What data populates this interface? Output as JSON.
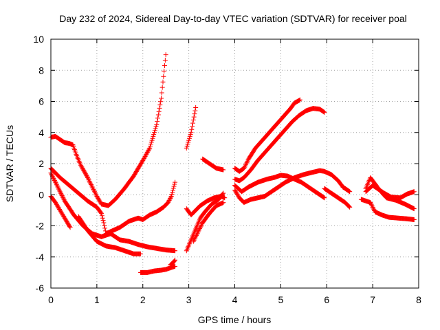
{
  "chart_data": {
    "type": "scatter",
    "title": "Day 232 of 2024, Sidereal Day-to-day VTEC variation (SDTVAR) for receiver poal",
    "xlabel": "GPS time / hours",
    "ylabel": "SDTVAR / TECUs",
    "xlim": [
      0,
      8
    ],
    "ylim": [
      -6,
      10
    ],
    "xticks": [
      0,
      1,
      2,
      3,
      4,
      5,
      6,
      7,
      8
    ],
    "yticks": [
      -6,
      -4,
      -2,
      0,
      2,
      4,
      6,
      8,
      10
    ],
    "grid": true,
    "marker": "+",
    "marker_color": "#ff0000",
    "series": [
      {
        "name": "s1",
        "points": [
          [
            0.0,
            3.7
          ],
          [
            0.1,
            3.75
          ],
          [
            0.2,
            3.55
          ],
          [
            0.3,
            3.35
          ],
          [
            0.4,
            3.3
          ],
          [
            0.48,
            3.2
          ],
          [
            0.55,
            2.6
          ],
          [
            0.65,
            1.9
          ],
          [
            0.8,
            1.1
          ],
          [
            0.9,
            0.5
          ],
          [
            1.0,
            -0.1
          ],
          [
            1.1,
            -0.6
          ],
          [
            1.25,
            -0.7
          ],
          [
            1.4,
            -0.3
          ],
          [
            1.6,
            0.4
          ],
          [
            1.8,
            1.2
          ],
          [
            2.0,
            2.2
          ],
          [
            2.15,
            3.0
          ],
          [
            2.3,
            4.5
          ],
          [
            2.4,
            6.2
          ],
          [
            2.5,
            9.0
          ]
        ]
      },
      {
        "name": "s2",
        "points": [
          [
            0.0,
            1.7
          ],
          [
            0.2,
            1.1
          ],
          [
            0.4,
            0.6
          ],
          [
            0.6,
            0.1
          ],
          [
            0.8,
            -0.4
          ],
          [
            1.0,
            -0.8
          ],
          [
            1.1,
            -1.2
          ],
          [
            1.15,
            -1.8
          ],
          [
            1.2,
            -2.5
          ],
          [
            1.35,
            -2.3
          ],
          [
            1.5,
            -2.1
          ],
          [
            1.7,
            -1.7
          ],
          [
            1.9,
            -1.5
          ],
          [
            2.0,
            -1.6
          ],
          [
            2.15,
            -1.3
          ],
          [
            2.3,
            -1.1
          ],
          [
            2.45,
            -0.8
          ],
          [
            2.55,
            -0.5
          ],
          [
            2.62,
            -0.1
          ],
          [
            2.7,
            0.8
          ]
        ]
      },
      {
        "name": "s3",
        "points": [
          [
            0.0,
            1.4
          ],
          [
            0.15,
            0.5
          ],
          [
            0.3,
            -0.4
          ],
          [
            0.5,
            -1.3
          ],
          [
            0.7,
            -2.0
          ],
          [
            0.9,
            -2.5
          ],
          [
            1.1,
            -2.7
          ],
          [
            1.3,
            -2.5
          ],
          [
            1.5,
            -2.9
          ],
          [
            1.7,
            -3.0
          ],
          [
            1.9,
            -3.2
          ],
          [
            2.1,
            -3.35
          ],
          [
            2.3,
            -3.45
          ],
          [
            2.5,
            -3.55
          ],
          [
            2.7,
            -3.6
          ]
        ]
      },
      {
        "name": "s4",
        "points": [
          [
            0.0,
            -0.1
          ],
          [
            0.1,
            -0.5
          ],
          [
            0.2,
            -1.0
          ],
          [
            0.3,
            -1.5
          ],
          [
            0.42,
            -2.1
          ]
        ]
      },
      {
        "name": "s5",
        "points": [
          [
            0.6,
            -1.4
          ],
          [
            0.8,
            -2.3
          ],
          [
            1.0,
            -3.0
          ],
          [
            1.2,
            -3.3
          ],
          [
            1.4,
            -3.4
          ],
          [
            1.6,
            -3.6
          ],
          [
            1.8,
            -3.8
          ],
          [
            1.95,
            -3.8
          ]
        ]
      },
      {
        "name": "s6",
        "points": [
          [
            1.95,
            -5.0
          ],
          [
            2.1,
            -5.0
          ],
          [
            2.25,
            -4.9
          ],
          [
            2.4,
            -4.85
          ],
          [
            2.5,
            -4.8
          ],
          [
            2.6,
            -4.7
          ],
          [
            2.7,
            -4.6
          ]
        ]
      },
      {
        "name": "s7",
        "points": [
          [
            2.6,
            -4.5
          ],
          [
            2.65,
            -4.4
          ],
          [
            2.7,
            -4.2
          ]
        ]
      },
      {
        "name": "s8",
        "points": [
          [
            2.95,
            3.0
          ],
          [
            3.0,
            3.5
          ],
          [
            3.05,
            4.0
          ],
          [
            3.1,
            4.8
          ],
          [
            3.15,
            5.6
          ]
        ]
      },
      {
        "name": "s9",
        "points": [
          [
            2.95,
            -3.6
          ],
          [
            3.05,
            -2.9
          ],
          [
            3.15,
            -2.2
          ],
          [
            3.25,
            -1.5
          ],
          [
            3.35,
            -1.1
          ],
          [
            3.5,
            -0.6
          ],
          [
            3.65,
            -0.3
          ],
          [
            3.75,
            0.1
          ]
        ]
      },
      {
        "name": "s10",
        "points": [
          [
            2.95,
            -0.9
          ],
          [
            3.05,
            -1.3
          ],
          [
            3.15,
            -1.0
          ],
          [
            3.25,
            -0.7
          ],
          [
            3.4,
            -0.4
          ],
          [
            3.55,
            -0.2
          ],
          [
            3.7,
            -0.1
          ],
          [
            3.78,
            -0.2
          ]
        ]
      },
      {
        "name": "s11",
        "points": [
          [
            3.1,
            -3.0
          ],
          [
            3.2,
            -2.4
          ],
          [
            3.3,
            -1.8
          ],
          [
            3.45,
            -1.2
          ],
          [
            3.6,
            -0.7
          ],
          [
            3.75,
            -0.5
          ]
        ]
      },
      {
        "name": "s12",
        "points": [
          [
            3.3,
            2.3
          ],
          [
            3.4,
            2.1
          ],
          [
            3.5,
            1.9
          ],
          [
            3.6,
            1.7
          ],
          [
            3.75,
            1.6
          ]
        ]
      },
      {
        "name": "s13",
        "points": [
          [
            4.0,
            1.7
          ],
          [
            4.1,
            1.5
          ],
          [
            4.2,
            1.7
          ],
          [
            4.3,
            2.3
          ],
          [
            4.45,
            3.0
          ],
          [
            4.6,
            3.5
          ],
          [
            4.75,
            4.0
          ],
          [
            4.9,
            4.5
          ],
          [
            5.05,
            5.0
          ],
          [
            5.2,
            5.5
          ],
          [
            5.3,
            5.9
          ],
          [
            5.42,
            6.1
          ]
        ]
      },
      {
        "name": "s14",
        "points": [
          [
            4.0,
            1.0
          ],
          [
            4.1,
            0.9
          ],
          [
            4.2,
            1.1
          ],
          [
            4.35,
            1.6
          ],
          [
            4.5,
            2.2
          ],
          [
            4.65,
            2.7
          ],
          [
            4.8,
            3.2
          ],
          [
            4.95,
            3.7
          ],
          [
            5.1,
            4.2
          ],
          [
            5.25,
            4.7
          ],
          [
            5.4,
            5.1
          ],
          [
            5.55,
            5.4
          ],
          [
            5.7,
            5.55
          ],
          [
            5.85,
            5.5
          ],
          [
            5.95,
            5.3
          ]
        ]
      },
      {
        "name": "s15",
        "points": [
          [
            4.0,
            0.6
          ],
          [
            4.15,
            0.2
          ],
          [
            4.3,
            0.5
          ],
          [
            4.5,
            0.8
          ],
          [
            4.7,
            1.0
          ],
          [
            4.85,
            1.1
          ],
          [
            5.0,
            1.25
          ],
          [
            5.15,
            1.2
          ],
          [
            5.3,
            1.0
          ],
          [
            5.45,
            0.8
          ],
          [
            5.6,
            0.5
          ],
          [
            5.8,
            0.1
          ],
          [
            5.95,
            -0.2
          ]
        ]
      },
      {
        "name": "s16",
        "points": [
          [
            4.0,
            0.3
          ],
          [
            4.1,
            -0.2
          ],
          [
            4.2,
            -0.5
          ],
          [
            4.35,
            -0.3
          ],
          [
            4.5,
            -0.2
          ],
          [
            4.65,
            -0.1
          ],
          [
            4.8,
            0.2
          ],
          [
            4.95,
            0.5
          ],
          [
            5.1,
            0.8
          ],
          [
            5.3,
            1.1
          ],
          [
            5.5,
            1.3
          ],
          [
            5.7,
            1.45
          ],
          [
            5.85,
            1.55
          ],
          [
            5.95,
            1.5
          ],
          [
            6.1,
            1.3
          ],
          [
            6.25,
            0.9
          ],
          [
            6.35,
            0.5
          ],
          [
            6.5,
            0.2
          ]
        ]
      },
      {
        "name": "s17",
        "points": [
          [
            5.95,
            0.4
          ],
          [
            6.1,
            0.1
          ],
          [
            6.25,
            -0.2
          ],
          [
            6.4,
            -0.5
          ],
          [
            6.5,
            -0.8
          ]
        ]
      },
      {
        "name": "s18",
        "points": [
          [
            6.75,
            -0.3
          ],
          [
            6.85,
            -0.4
          ],
          [
            6.95,
            -0.5
          ],
          [
            7.05,
            -1.1
          ],
          [
            7.2,
            -1.3
          ],
          [
            7.35,
            -1.45
          ],
          [
            7.55,
            -1.5
          ],
          [
            7.75,
            -1.55
          ],
          [
            7.9,
            -1.6
          ]
        ]
      },
      {
        "name": "s19",
        "points": [
          [
            6.85,
            0.4
          ],
          [
            6.95,
            1.1
          ],
          [
            7.05,
            0.7
          ],
          [
            7.15,
            0.3
          ],
          [
            7.3,
            -0.2
          ],
          [
            7.5,
            -0.35
          ],
          [
            7.7,
            -0.6
          ],
          [
            7.9,
            -0.9
          ]
        ]
      },
      {
        "name": "s20",
        "points": [
          [
            6.85,
            0.2
          ],
          [
            7.0,
            0.6
          ],
          [
            7.1,
            0.4
          ],
          [
            7.25,
            0.1
          ],
          [
            7.4,
            -0.15
          ],
          [
            7.6,
            -0.2
          ],
          [
            7.75,
            0.05
          ],
          [
            7.9,
            0.2
          ]
        ]
      }
    ]
  }
}
